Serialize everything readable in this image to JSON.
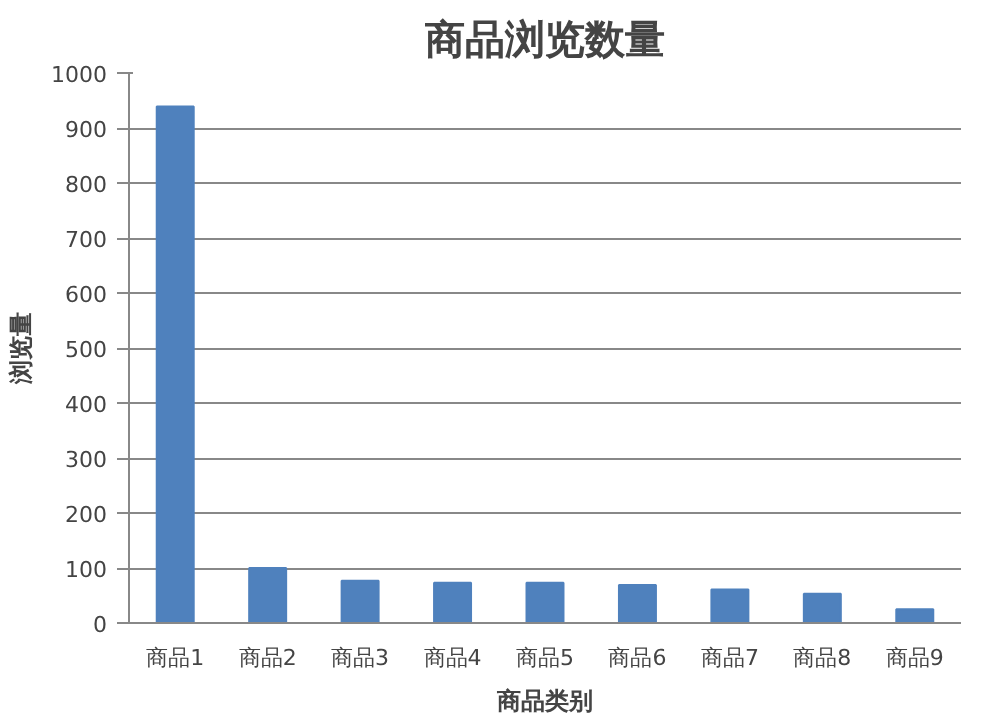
{
  "chart_data": {
    "type": "bar",
    "title": "商品浏览数量",
    "xlabel": "商品类别",
    "ylabel": "浏览量",
    "categories": [
      "商品1",
      "商品2",
      "商品3",
      "商品4",
      "商品5",
      "商品6",
      "商品7",
      "商品8",
      "商品9"
    ],
    "values": [
      939,
      100,
      77,
      73,
      73,
      69,
      61,
      53,
      25
    ],
    "color": "#4f81bd",
    "ylim": [
      0,
      1000
    ],
    "yticks": [
      0,
      100,
      200,
      300,
      400,
      500,
      600,
      700,
      800,
      900,
      1000
    ],
    "grid": "y"
  }
}
